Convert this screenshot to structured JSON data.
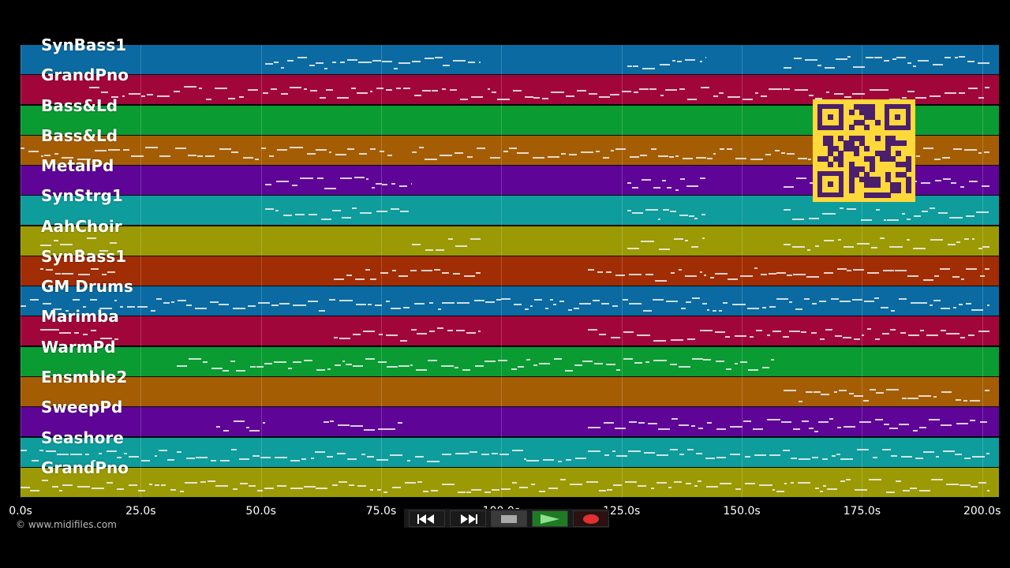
{
  "tracks": [
    {
      "name": "SynBass1",
      "color": "#0a6aa1"
    },
    {
      "name": "GrandPno",
      "color": "#a1063a"
    },
    {
      "name": "Bass&Ld",
      "color": "#0a9b32"
    },
    {
      "name": "Bass&Ld",
      "color": "#a55d04"
    },
    {
      "name": "MetalPd",
      "color": "#5e0497"
    },
    {
      "name": "SynStrg1",
      "color": "#0e9c9c"
    },
    {
      "name": "AahChoir",
      "color": "#9b9a04"
    },
    {
      "name": "SynBass1",
      "color": "#a12d04"
    },
    {
      "name": "GM Drums",
      "color": "#0a6aa1"
    },
    {
      "name": "Marimba",
      "color": "#a1063a"
    },
    {
      "name": "WarmPd",
      "color": "#0a9b32"
    },
    {
      "name": "Ensmble2",
      "color": "#a55d04"
    },
    {
      "name": "SweepPd",
      "color": "#5e0497"
    },
    {
      "name": "Seashore",
      "color": "#0e9c9c"
    },
    {
      "name": "GrandPno",
      "color": "#9b9a04"
    }
  ],
  "timeline": {
    "ticks": [
      "0.0s",
      "25.0s",
      "50.0s",
      "75.0s",
      "100.0s",
      "125.0s",
      "150.0s",
      "175.0s",
      "200.0s"
    ],
    "max_seconds": 203.5
  },
  "copyright": "© www.midifiles.com",
  "transport": {
    "rewind_icon": "rewind-icon",
    "forward_icon": "fast-forward-icon",
    "stop_icon": "stop-icon",
    "play_icon": "play-icon",
    "record_icon": "record-icon",
    "play_active_color": "#1f7a23",
    "record_color": "#e03030"
  },
  "qr_code": {
    "label": "qr-code"
  }
}
